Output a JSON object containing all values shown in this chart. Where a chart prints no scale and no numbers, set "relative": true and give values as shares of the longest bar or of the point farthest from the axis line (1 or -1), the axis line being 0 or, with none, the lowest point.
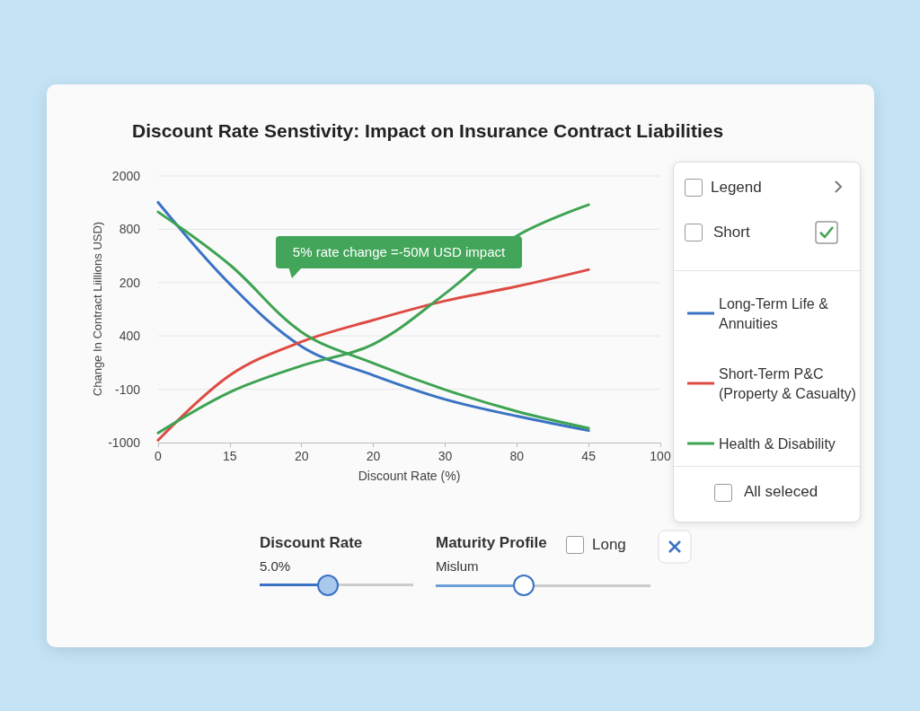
{
  "chart_data": {
    "type": "line",
    "title": "Discount Rate Senstivity: Impact on Insurance Contract Liabilities",
    "xlabel": "Discount Rate (%)",
    "ylabel": "Change In Contract Liillions USD)",
    "categories": [
      "0",
      "15",
      "20",
      "20",
      "30",
      "80",
      "45",
      "100"
    ],
    "relative": true,
    "grid": "y",
    "legend": "right",
    "marker": "none",
    "line_style": "solid",
    "series": [
      {
        "name": "Long-Term Life & Annuities",
        "color": "#3a72c4",
        "values": [
          1,
          0.66,
          0.4,
          0.28,
          0.18,
          0.11,
          0.05,
          null
        ]
      },
      {
        "name": "Short-Term P&C (Property & Casualty)",
        "color": "#de4b44",
        "values": [
          0.01,
          0.28,
          0.42,
          0.51,
          0.59,
          0.65,
          0.72,
          null
        ]
      },
      {
        "name": "Health & Disability",
        "color": "#3ea352",
        "values": [
          0.04,
          0.21,
          0.32,
          0.41,
          0.62,
          0.86,
          0.99,
          null
        ]
      },
      {
        "color": "#3ea352",
        "values": [
          0.96,
          0.74,
          0.46,
          0.33,
          0.22,
          0.13,
          0.06,
          null
        ]
      }
    ],
    "annotations": [
      "5% rate change =-50M USD impact",
      "Legend",
      "Short",
      "All seleced",
      "Discount Rate",
      "5.0%",
      "Maturity Profile",
      "Long",
      "Mislum",
      "2000",
      "800",
      "200",
      "400",
      "-100",
      "-1000"
    ]
  }
}
